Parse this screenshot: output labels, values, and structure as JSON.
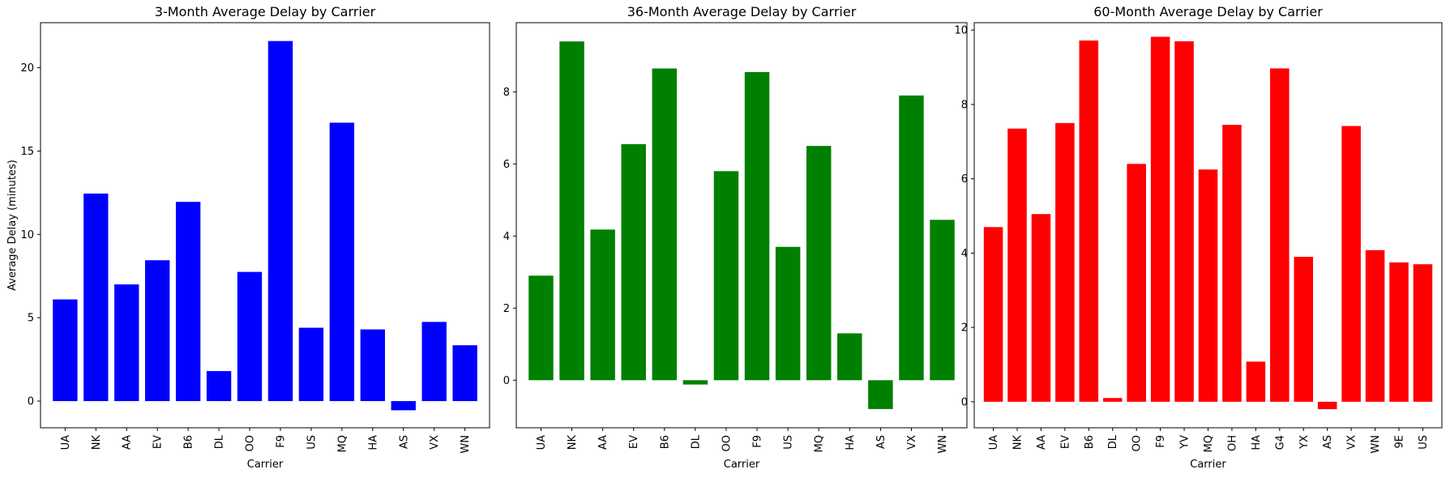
{
  "chart_data": [
    {
      "type": "bar",
      "title": "3-Month Average Delay by Carrier",
      "xlabel": "Carrier",
      "ylabel": "Average Delay (minutes)",
      "color": "#0000ff",
      "categories": [
        "UA",
        "NK",
        "AA",
        "EV",
        "B6",
        "DL",
        "OO",
        "F9",
        "US",
        "MQ",
        "HA",
        "AS",
        "VX",
        "WN"
      ],
      "values": [
        6.1,
        12.45,
        7.0,
        8.45,
        11.95,
        1.8,
        7.75,
        21.6,
        4.4,
        16.7,
        4.3,
        -0.55,
        4.75,
        3.35
      ],
      "ylim": [
        -1.6,
        22.7
      ],
      "yticks": [
        0,
        5,
        10,
        15,
        20
      ],
      "grid": false
    },
    {
      "type": "bar",
      "title": "36-Month Average Delay by Carrier",
      "xlabel": "Carrier",
      "ylabel": "",
      "color": "#008000",
      "categories": [
        "UA",
        "NK",
        "AA",
        "EV",
        "B6",
        "DL",
        "OO",
        "F9",
        "US",
        "MQ",
        "HA",
        "AS",
        "VX",
        "WN"
      ],
      "values": [
        2.9,
        9.4,
        4.18,
        6.55,
        8.65,
        -0.12,
        5.8,
        8.55,
        3.7,
        6.5,
        1.3,
        -0.8,
        7.9,
        4.45
      ],
      "ylim": [
        -1.32,
        9.92
      ],
      "yticks": [
        0,
        2,
        4,
        6,
        8
      ],
      "grid": false
    },
    {
      "type": "bar",
      "title": "60-Month Average Delay by Carrier",
      "xlabel": "Carrier",
      "ylabel": "",
      "color": "#ff0000",
      "categories": [
        "UA",
        "NK",
        "AA",
        "EV",
        "B6",
        "DL",
        "OO",
        "F9",
        "YV",
        "MQ",
        "OH",
        "HA",
        "G4",
        "YX",
        "AS",
        "VX",
        "WN",
        "9E",
        "US"
      ],
      "values": [
        4.7,
        7.35,
        5.05,
        7.5,
        9.72,
        0.1,
        6.4,
        9.82,
        9.7,
        6.25,
        7.45,
        1.08,
        8.97,
        3.9,
        -0.2,
        7.42,
        4.08,
        3.75,
        3.7
      ],
      "ylim": [
        -0.7,
        10.2
      ],
      "yticks": [
        0,
        2,
        4,
        6,
        8,
        10
      ],
      "grid": false
    }
  ]
}
